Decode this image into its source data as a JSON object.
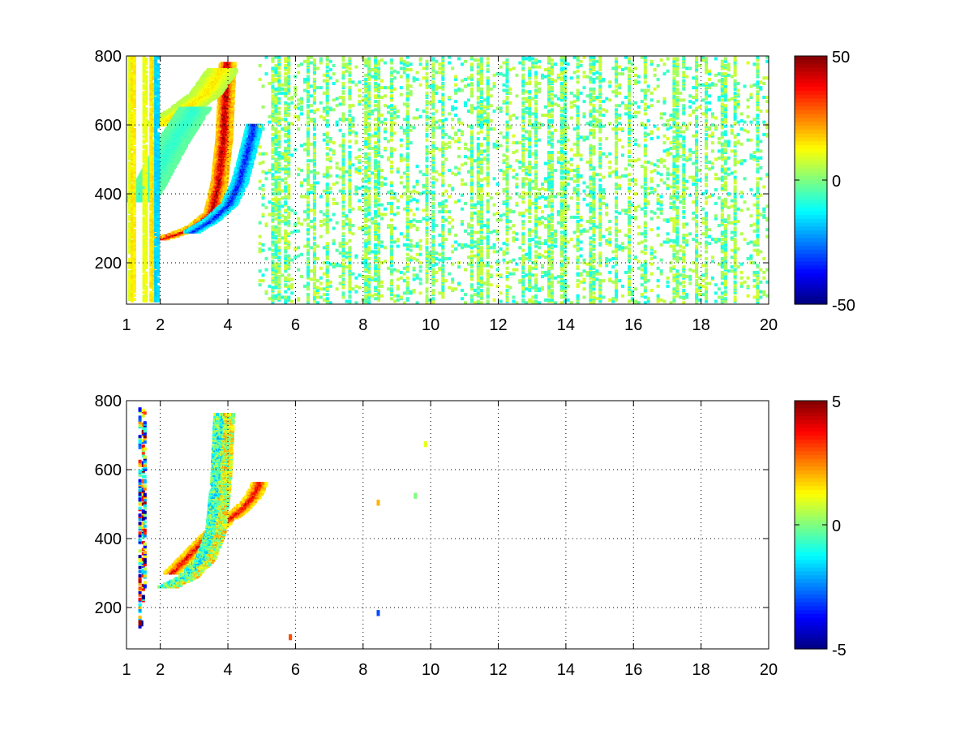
{
  "chart_data": [
    {
      "type": "heatmap",
      "title": "",
      "xlabel": "",
      "ylabel": "",
      "xlim": [
        1,
        20
      ],
      "ylim": [
        80,
        800
      ],
      "x_ticks": [
        1,
        2,
        4,
        6,
        8,
        10,
        12,
        14,
        16,
        18,
        20
      ],
      "x_tick_labels": [
        "1",
        "2",
        "4",
        "6",
        "8",
        "10",
        "12",
        "14",
        "16",
        "18",
        "20"
      ],
      "y_ticks": [
        200,
        400,
        600,
        800
      ],
      "y_tick_labels": [
        "200",
        "400",
        "600",
        "800"
      ],
      "grid": true,
      "colormap": "jet",
      "clim": [
        -50,
        50
      ],
      "colorbar_ticks": [
        50,
        0,
        -50
      ],
      "colorbar_tick_labels": [
        "50",
        "0",
        "-50"
      ],
      "features": [
        {
          "kind": "positive-ridge",
          "curve_x": [
            2.0,
            2.5,
            3.0,
            3.5,
            3.7,
            3.85,
            3.95
          ],
          "curve_y": [
            270,
            285,
            305,
            345,
            430,
            560,
            780
          ],
          "peak_value": 45
        },
        {
          "kind": "negative-ridge",
          "curve_x": [
            2.9,
            3.5,
            4.0,
            4.3,
            4.55,
            4.75
          ],
          "curve_y": [
            290,
            325,
            370,
            430,
            520,
            600
          ],
          "peak_value": -35
        },
        {
          "kind": "positive-band",
          "curve_x": [
            1.9,
            2.6,
            3.3,
            3.8
          ],
          "curve_y": [
            600,
            640,
            690,
            760
          ],
          "peak_value": 15
        },
        {
          "kind": "negative-band",
          "curve_x": [
            1.4,
            1.9,
            2.4,
            3.0
          ],
          "curve_y": [
            380,
            470,
            560,
            650
          ],
          "peak_value": -8
        }
      ],
      "background": "scattered low-amplitude values (about -10 to 10) in vertical streaks across x = 5 to 20"
    },
    {
      "type": "heatmap",
      "title": "",
      "xlabel": "",
      "ylabel": "",
      "xlim": [
        1,
        20
      ],
      "ylim": [
        80,
        800
      ],
      "x_ticks": [
        1,
        2,
        4,
        6,
        8,
        10,
        12,
        14,
        16,
        18,
        20
      ],
      "x_tick_labels": [
        "1",
        "2",
        "4",
        "6",
        "8",
        "10",
        "12",
        "14",
        "16",
        "18",
        "20"
      ],
      "y_ticks": [
        200,
        400,
        600,
        800
      ],
      "y_tick_labels": [
        "200",
        "400",
        "600",
        "800"
      ],
      "grid": true,
      "colormap": "jet",
      "clim": [
        -5,
        5
      ],
      "colorbar_ticks": [
        5,
        0,
        -5
      ],
      "colorbar_tick_labels": [
        "5",
        "0",
        "-5"
      ],
      "features": [
        {
          "kind": "positive-ridge",
          "curve_x": [
            2.3,
            2.9,
            3.4,
            3.9,
            4.3,
            4.7,
            4.9
          ],
          "curve_y": [
            300,
            360,
            410,
            450,
            480,
            520,
            560
          ],
          "peak_value": 4
        },
        {
          "kind": "mixed-band",
          "curve_x": [
            2.2,
            2.8,
            3.3,
            3.6,
            3.75,
            3.85
          ],
          "curve_y": [
            260,
            290,
            340,
            420,
            560,
            760
          ],
          "peak_value": 0
        }
      ],
      "isolated_points": [
        {
          "x": 1.4,
          "y": 150,
          "value": -5
        },
        {
          "x": 1.5,
          "y": 600,
          "value": -4
        },
        {
          "x": 5.8,
          "y": 110,
          "value": 3
        },
        {
          "x": 8.4,
          "y": 500,
          "value": 2
        },
        {
          "x": 8.4,
          "y": 180,
          "value": -3
        },
        {
          "x": 9.5,
          "y": 520,
          "value": 0
        },
        {
          "x": 9.8,
          "y": 670,
          "value": 1
        }
      ]
    }
  ]
}
